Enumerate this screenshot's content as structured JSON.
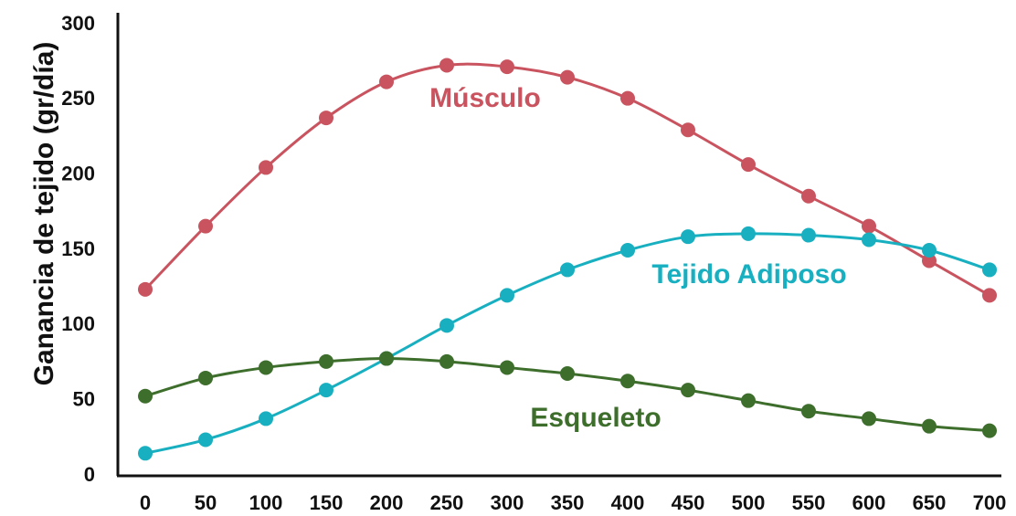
{
  "chart_data": {
    "type": "line",
    "title": "",
    "xlabel": "",
    "ylabel": "Ganancia de tejido (gr/día)",
    "x": [
      0,
      50,
      100,
      150,
      200,
      250,
      300,
      350,
      400,
      450,
      500,
      550,
      600,
      650,
      700
    ],
    "xlim": [
      0,
      700
    ],
    "ylim": [
      0,
      300
    ],
    "x_ticks": [
      "0",
      "50",
      "100",
      "150",
      "200",
      "250",
      "300",
      "350",
      "400",
      "450",
      "500",
      "550",
      "600",
      "650",
      "700"
    ],
    "y_ticks": [
      "0",
      "50",
      "100",
      "150",
      "200",
      "250",
      "300"
    ],
    "grid": false,
    "legend": "inline labels",
    "series": [
      {
        "name": "Músculo",
        "color": "#c9545f",
        "values": [
          124,
          166,
          205,
          238,
          262,
          273,
          272,
          265,
          251,
          230,
          207,
          186,
          166,
          143,
          120
        ]
      },
      {
        "name": "Tejido Adiposo",
        "color": "#18b0c0",
        "values": [
          15,
          24,
          38,
          57,
          78,
          100,
          120,
          137,
          150,
          159,
          161,
          160,
          157,
          150,
          137
        ]
      },
      {
        "name": "Esqueleto",
        "color": "#3e6e2c",
        "values": [
          53,
          65,
          72,
          76,
          78,
          76,
          72,
          68,
          63,
          57,
          50,
          43,
          38,
          33,
          30
        ]
      }
    ]
  }
}
